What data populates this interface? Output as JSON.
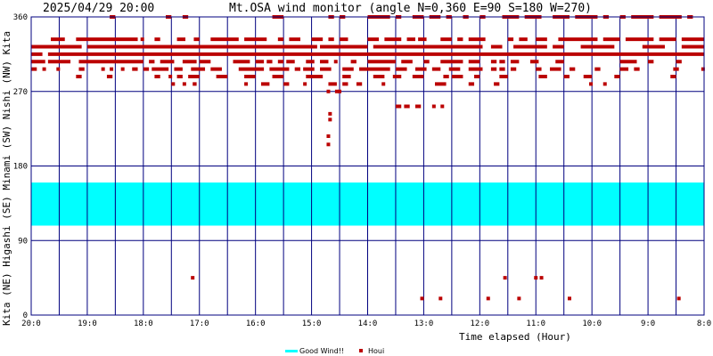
{
  "header": {
    "timestamp": "2025/04/29 20:00",
    "title": "Mt.OSA wind monitor (angle N=0,360 E=90 S=180 W=270)"
  },
  "colors": {
    "background": "#ffffff",
    "grid": "#00007f",
    "good_wind": "#00ffff",
    "houi": "#bb0000"
  },
  "chart_data": {
    "type": "scatter",
    "title": "Mt.OSA wind monitor (angle N=0,360 E=90 S=180 W=270)",
    "xlabel": "Time elapsed (Hour)",
    "ylabel": "Kita (NE) Higashi (SE) Minami (SW) Nishi (NW) Kita",
    "x_ticks": [
      "20:0",
      "19:0",
      "18:0",
      "17:0",
      "16:0",
      "15:0",
      "14:0",
      "13:0",
      "12:0",
      "11:0",
      "10:0",
      "9:0",
      "8:0"
    ],
    "x_range_hours_elapsed": [
      0,
      12
    ],
    "y_ticks": [
      0,
      90,
      180,
      270,
      360
    ],
    "ylim": [
      0,
      360
    ],
    "y_direction_labels": [
      "Kita",
      "(NE)",
      "Higashi",
      "(SE)",
      "Minami",
      "(SW)",
      "Nishi",
      "(NW)",
      "Kita"
    ],
    "grid": true,
    "good_wind_band": [
      108,
      160
    ],
    "legend": [
      {
        "name": "Good Wind!!",
        "kind": "band"
      },
      {
        "name": "Houi",
        "kind": "point"
      }
    ],
    "legend_position": "bottom-center",
    "runs": [
      {
        "y": 360,
        "segments": [
          [
            1.4,
            1.5
          ],
          [
            2.4,
            2.5
          ],
          [
            2.7,
            2.8
          ],
          [
            4.3,
            4.5
          ],
          [
            5.3,
            5.4
          ],
          [
            5.5,
            5.6
          ],
          [
            6.0,
            6.4
          ],
          [
            6.5,
            6.6
          ],
          [
            6.8,
            7.0
          ],
          [
            7.1,
            7.3
          ],
          [
            7.4,
            7.5
          ],
          [
            7.7,
            7.8
          ],
          [
            8.0,
            8.1
          ],
          [
            8.4,
            8.7
          ],
          [
            8.8,
            9.1
          ],
          [
            9.3,
            9.6
          ],
          [
            9.7,
            10.1
          ],
          [
            10.2,
            10.3
          ],
          [
            10.5,
            10.6
          ],
          [
            10.7,
            11.1
          ],
          [
            11.2,
            11.6
          ],
          [
            11.7,
            11.8
          ]
        ]
      },
      {
        "y": 333,
        "segments": [
          [
            0.35,
            0.6
          ],
          [
            0.8,
            1.9
          ],
          [
            1.95,
            2.0
          ],
          [
            2.2,
            2.3
          ],
          [
            2.6,
            2.75
          ],
          [
            2.9,
            3.0
          ],
          [
            3.2,
            3.7
          ],
          [
            3.8,
            4.2
          ],
          [
            4.4,
            4.5
          ],
          [
            4.6,
            4.8
          ],
          [
            5.0,
            5.2
          ],
          [
            5.3,
            5.4
          ],
          [
            5.5,
            5.65
          ],
          [
            6.0,
            6.2
          ],
          [
            6.3,
            6.6
          ],
          [
            6.7,
            6.85
          ],
          [
            6.9,
            7.05
          ],
          [
            7.3,
            7.5
          ],
          [
            7.6,
            7.7
          ],
          [
            7.8,
            8.1
          ],
          [
            8.5,
            8.6
          ],
          [
            8.7,
            8.85
          ],
          [
            9.0,
            9.2
          ],
          [
            9.4,
            10.1
          ],
          [
            10.2,
            10.5
          ],
          [
            10.6,
            11.1
          ],
          [
            11.2,
            11.5
          ],
          [
            11.6,
            12.0
          ]
        ]
      },
      {
        "y": 324,
        "segments": [
          [
            0.0,
            0.9
          ],
          [
            1.0,
            5.1
          ],
          [
            5.15,
            6.0
          ],
          [
            6.1,
            8.05
          ],
          [
            8.2,
            8.4
          ],
          [
            8.6,
            9.2
          ],
          [
            9.3,
            9.5
          ],
          [
            9.8,
            10.4
          ],
          [
            10.9,
            11.3
          ],
          [
            11.6,
            12.0
          ]
        ]
      },
      {
        "y": 315,
        "segments": [
          [
            0.0,
            0.2
          ],
          [
            0.3,
            12.0
          ]
        ]
      },
      {
        "y": 306,
        "segments": [
          [
            0.0,
            0.25
          ],
          [
            0.3,
            0.7
          ],
          [
            0.85,
            2.0
          ],
          [
            2.1,
            2.2
          ],
          [
            2.3,
            2.55
          ],
          [
            2.7,
            2.95
          ],
          [
            3.0,
            3.2
          ],
          [
            3.6,
            3.9
          ],
          [
            4.0,
            4.15
          ],
          [
            4.2,
            4.3
          ],
          [
            4.4,
            4.5
          ],
          [
            4.55,
            4.7
          ],
          [
            4.9,
            5.05
          ],
          [
            5.15,
            5.3
          ],
          [
            5.4,
            5.45
          ],
          [
            5.7,
            5.8
          ],
          [
            6.0,
            6.5
          ],
          [
            6.6,
            6.8
          ],
          [
            7.0,
            7.1
          ],
          [
            7.3,
            7.7
          ],
          [
            7.8,
            8.0
          ],
          [
            8.2,
            8.3
          ],
          [
            8.35,
            8.45
          ],
          [
            8.55,
            8.7
          ],
          [
            8.9,
            9.05
          ],
          [
            9.35,
            9.5
          ],
          [
            10.5,
            10.8
          ],
          [
            11.0,
            11.1
          ],
          [
            11.5,
            11.6
          ]
        ]
      },
      {
        "y": 297,
        "segments": [
          [
            0.0,
            0.1
          ],
          [
            0.2,
            0.25
          ],
          [
            0.45,
            0.5
          ],
          [
            0.85,
            0.95
          ],
          [
            1.25,
            1.3
          ],
          [
            1.4,
            1.45
          ],
          [
            1.6,
            1.65
          ],
          [
            1.8,
            1.9
          ],
          [
            2.0,
            2.1
          ],
          [
            2.15,
            2.45
          ],
          [
            2.55,
            2.7
          ],
          [
            2.85,
            3.1
          ],
          [
            3.2,
            3.4
          ],
          [
            3.7,
            4.15
          ],
          [
            4.25,
            4.6
          ],
          [
            4.7,
            4.8
          ],
          [
            4.85,
            5.05
          ],
          [
            5.15,
            5.35
          ],
          [
            5.55,
            5.75
          ],
          [
            5.85,
            6.4
          ],
          [
            6.5,
            6.7
          ],
          [
            6.85,
            7.05
          ],
          [
            7.15,
            7.3
          ],
          [
            7.45,
            7.65
          ],
          [
            7.8,
            8.05
          ],
          [
            8.2,
            8.3
          ],
          [
            8.35,
            8.45
          ],
          [
            8.55,
            8.65
          ],
          [
            9.0,
            9.1
          ],
          [
            9.25,
            9.45
          ],
          [
            9.6,
            9.7
          ],
          [
            10.05,
            10.15
          ],
          [
            10.5,
            10.65
          ],
          [
            10.75,
            10.85
          ],
          [
            11.45,
            11.55
          ],
          [
            11.95,
            12.0
          ]
        ]
      },
      {
        "y": 288,
        "segments": [
          [
            0.8,
            0.9
          ],
          [
            1.35,
            1.45
          ],
          [
            2.2,
            2.3
          ],
          [
            2.45,
            2.5
          ],
          [
            2.6,
            2.7
          ],
          [
            2.8,
            3.0
          ],
          [
            3.3,
            3.5
          ],
          [
            3.8,
            4.0
          ],
          [
            4.3,
            4.5
          ],
          [
            4.9,
            5.2
          ],
          [
            5.55,
            5.7
          ],
          [
            6.1,
            6.3
          ],
          [
            6.45,
            6.6
          ],
          [
            6.8,
            7.0
          ],
          [
            7.35,
            7.45
          ],
          [
            7.5,
            7.7
          ],
          [
            7.9,
            8.0
          ],
          [
            8.35,
            8.5
          ],
          [
            9.05,
            9.2
          ],
          [
            9.5,
            9.6
          ],
          [
            9.85,
            10.0
          ],
          [
            10.4,
            10.5
          ],
          [
            11.4,
            11.5
          ]
        ]
      },
      {
        "y": 279,
        "segments": [
          [
            2.5,
            2.55
          ],
          [
            2.7,
            2.75
          ],
          [
            2.88,
            2.95
          ],
          [
            3.8,
            3.85
          ],
          [
            4.1,
            4.25
          ],
          [
            4.5,
            4.6
          ],
          [
            4.85,
            4.9
          ],
          [
            5.3,
            5.45
          ],
          [
            5.55,
            5.65
          ],
          [
            5.8,
            5.9
          ],
          [
            6.25,
            6.3
          ],
          [
            7.2,
            7.4
          ],
          [
            7.8,
            7.9
          ],
          [
            8.25,
            8.35
          ],
          [
            9.95,
            10.0
          ],
          [
            10.2,
            10.25
          ]
        ]
      },
      {
        "y": 252,
        "segments": [
          [
            6.5,
            6.6
          ],
          [
            6.65,
            6.75
          ],
          [
            6.85,
            6.95
          ],
          [
            7.15,
            7.2
          ],
          [
            7.3,
            7.35
          ]
        ]
      }
    ],
    "points": [
      {
        "x": 5.3,
        "y": 270
      },
      {
        "x": 5.45,
        "y": 270
      },
      {
        "x": 5.5,
        "y": 270
      },
      {
        "x": 5.33,
        "y": 243
      },
      {
        "x": 5.33,
        "y": 236
      },
      {
        "x": 5.3,
        "y": 216
      },
      {
        "x": 5.3,
        "y": 206
      },
      {
        "x": 2.88,
        "y": 45
      },
      {
        "x": 6.97,
        "y": 20
      },
      {
        "x": 7.3,
        "y": 20
      },
      {
        "x": 8.15,
        "y": 20
      },
      {
        "x": 8.45,
        "y": 45
      },
      {
        "x": 8.7,
        "y": 20
      },
      {
        "x": 9.0,
        "y": 45
      },
      {
        "x": 9.1,
        "y": 45
      },
      {
        "x": 9.6,
        "y": 20
      },
      {
        "x": 11.55,
        "y": 20
      }
    ]
  }
}
